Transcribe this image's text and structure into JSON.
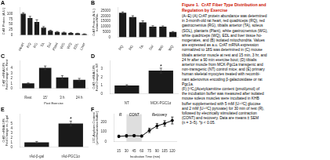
{
  "title": {
    "text": "Figure 1.  CrAT Fiber Type Distribution and\nRegulation by Exercise",
    "color": "#cc1100"
  },
  "annotations": [
    {
      "text": "(A–E) (A) CrAT protein abundance was determined\nin 3-month-old rat heart, red quadriceps (RQ), red\ngastrocnemius (RG), tibialis anterior (TA), soleus\n(SOL), plantaris (Plant), white gastrocnemius (WG),\nwhite quadriceps (WQ), EDL and liver tissue ho-\nmogenates, and (B) isolated mitochondria. Values\nare expressed as a.u. CrAT mRNA expression\nnormalized to 18S was determined in (C) mouse\ntibialis anterior muscle at rest and 15 min, 3 hr, and\n24 hr after a 90 min exercise bout; (D) tibialis\nanterior muscle from MCK-Pgc1a transgenic and\nnon-transgenic (NT) control mice; and (E) primary\nhuman skeletal myocytes treated with recombi-\nnant adenovirus encoding β-galactosidase or rat\nPgc1a.\n(F) [¹³C₂]Acetylcarnitine content (pmol/μmol) of\nthe incubation buffer was measured after isolated\nmouse soleus muscles were incubated in KHB\nbuffer supplemented with 5 mM [U-¹³C] glucose\nand 2 mM [U-¹³C] pyruvate) for 30 min of rest (R),\nfollowed by electrically stimulated contraction\n(CONT) and recovery. Data are means ± SEM\n(n = 3–5). *p < 0.05.",
      "color": "#000000"
    }
  ],
  "chart_data": [
    {
      "type": "bar",
      "title": "A",
      "ylabel": "CrAT Protein (A.U.)",
      "categories": [
        "Heart",
        "RQ",
        "RG",
        "TA",
        "Sol",
        "Plant",
        "WG",
        "WQ",
        "EDL",
        "Liver"
      ],
      "values": [
        100,
        80,
        62,
        35,
        20,
        15,
        12,
        10,
        8,
        5
      ],
      "errors": [
        5,
        8,
        10,
        5,
        3,
        2,
        2,
        2,
        1,
        1
      ],
      "color": "#1a1a1a",
      "ylim": [
        0,
        130
      ],
      "yticks": [
        0,
        25,
        50,
        75,
        100
      ],
      "grid": false
    },
    {
      "type": "bar",
      "title": "B",
      "ylabel": "CrAT Protein (A.U.)\nIsolated Mito.",
      "categories": [
        "RQ",
        "RG",
        "TA",
        "Sol",
        "WG",
        "WQ"
      ],
      "values": [
        23000,
        19000,
        14000,
        10000,
        10000,
        5000
      ],
      "errors": [
        800,
        1200,
        1500,
        900,
        700,
        400
      ],
      "color": "#1a1a1a",
      "ylim": [
        0,
        28000
      ],
      "yticks": [
        0,
        5000,
        10000,
        15000,
        20000,
        25000
      ],
      "grid": false
    },
    {
      "type": "bar",
      "title": "C",
      "ylabel": "CrAT mRNA/18S\nFold Change vs. Rest",
      "xlabel": "Post Exercise",
      "categories": [
        "Rest",
        "15'",
        "3 h",
        "24 h"
      ],
      "values": [
        1.0,
        4.1,
        2.2,
        1.7
      ],
      "errors": [
        0.1,
        0.35,
        0.35,
        0.3
      ],
      "color": "#1a1a1a",
      "ylim": [
        0,
        5.5
      ],
      "yticks": [
        0,
        1,
        2,
        3,
        4
      ],
      "grid": false
    },
    {
      "type": "bar",
      "title": "D",
      "ylabel": "CrAT mRNA/18S\nFold Change vs. NT",
      "categories": [
        "NT",
        "MCK-PGC1α"
      ],
      "values": [
        1.0,
        2.8
      ],
      "errors": [
        0.1,
        0.3
      ],
      "color": "#1a1a1a",
      "ylim": [
        0,
        4
      ],
      "yticks": [
        0,
        1,
        2,
        3
      ],
      "grid": false,
      "annotations": [
        {
          "text": "*",
          "category": "MCK-PGC1α",
          "y": 3.22
        }
      ]
    },
    {
      "type": "bar",
      "title": "E",
      "ylabel": "CrAT mRNA/18S\nFold Change vs. β-gal",
      "categories": [
        "rAd-β-gal",
        "rAd-PGC1α"
      ],
      "values": [
        1.0,
        5.0
      ],
      "errors": [
        0.2,
        0.5
      ],
      "color": "#1a1a1a",
      "ylim": [
        0,
        7
      ],
      "yticks": [
        0,
        1,
        2,
        3,
        4,
        5
      ],
      "grid": false,
      "annotations": [
        {
          "text": "*",
          "category": "rAd-PGC1α",
          "y": 5.65
        }
      ]
    },
    {
      "type": "line",
      "title": "F",
      "ylabel": "13C₂Acylcarn Content\n(μmol/Incubation Buffer)",
      "xlabel": "Incubation Time (min)",
      "x": [
        15,
        30,
        45,
        60,
        75,
        90,
        105,
        120
      ],
      "values": [
        55,
        60,
        62,
        58,
        115,
        160,
        185,
        215
      ],
      "errors": [
        12,
        14,
        12,
        10,
        22,
        25,
        28,
        35
      ],
      "color": "#000000",
      "marker": "circle",
      "line_style": "solid",
      "xlim": [
        5,
        128
      ],
      "ylim": [
        0,
        280
      ],
      "xticks": [
        15,
        30,
        45,
        60,
        75,
        90,
        105,
        120
      ],
      "yticks": [
        0,
        100,
        200
      ],
      "grid": false,
      "span": {
        "from": 30,
        "to": 60,
        "color": "#d0d0d0"
      },
      "annotations": [
        {
          "text": "R",
          "x": 18,
          "y": 260.4
        },
        {
          "text": "CONT",
          "x": 45,
          "y": 260.4
        },
        {
          "text": "Recovery",
          "x": 95,
          "y": 260.4
        }
      ]
    }
  ]
}
